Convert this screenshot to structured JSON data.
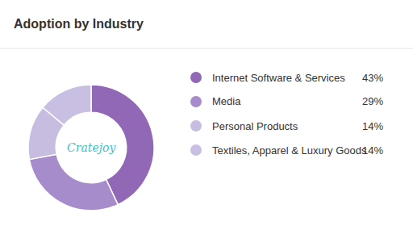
{
  "chart_data": {
    "type": "pie",
    "title": "Adoption by Industry",
    "categories": [
      "Internet Software & Services",
      "Media",
      "Personal Products",
      "Textiles, Apparel & Luxury Goods"
    ],
    "values": [
      43,
      29,
      14,
      14
    ],
    "value_labels": [
      "43%",
      "29%",
      "14%",
      "14%"
    ],
    "colors": [
      "#9068b5",
      "#a78ccb",
      "#c6bde0",
      "#c8bfe2"
    ],
    "legend": "right",
    "data_labels": false,
    "annotations": [
      {
        "text": "Cratejoy"
      }
    ]
  }
}
